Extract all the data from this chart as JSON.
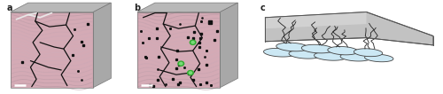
{
  "panel_a_label": "a",
  "panel_b_label": "b",
  "panel_c_label": "c",
  "bg_color": "#ffffff",
  "label_fontsize": 7,
  "label_color": "#222222",
  "box_face_pink": "#d9b8c0",
  "box_side_gray": "#b0b0b0",
  "box_top_gray": "#c8c8c8",
  "crack_color": "#111111",
  "scale_bar_color": "#ffffff",
  "green_spot_color": "#44bb44",
  "melt_pool_fill": "#d0e8f4",
  "melt_pool_edge": "#333333",
  "wedge_fill": "#c0c0c0",
  "wedge_edge": "#555555",
  "schematic_line": "#222222"
}
